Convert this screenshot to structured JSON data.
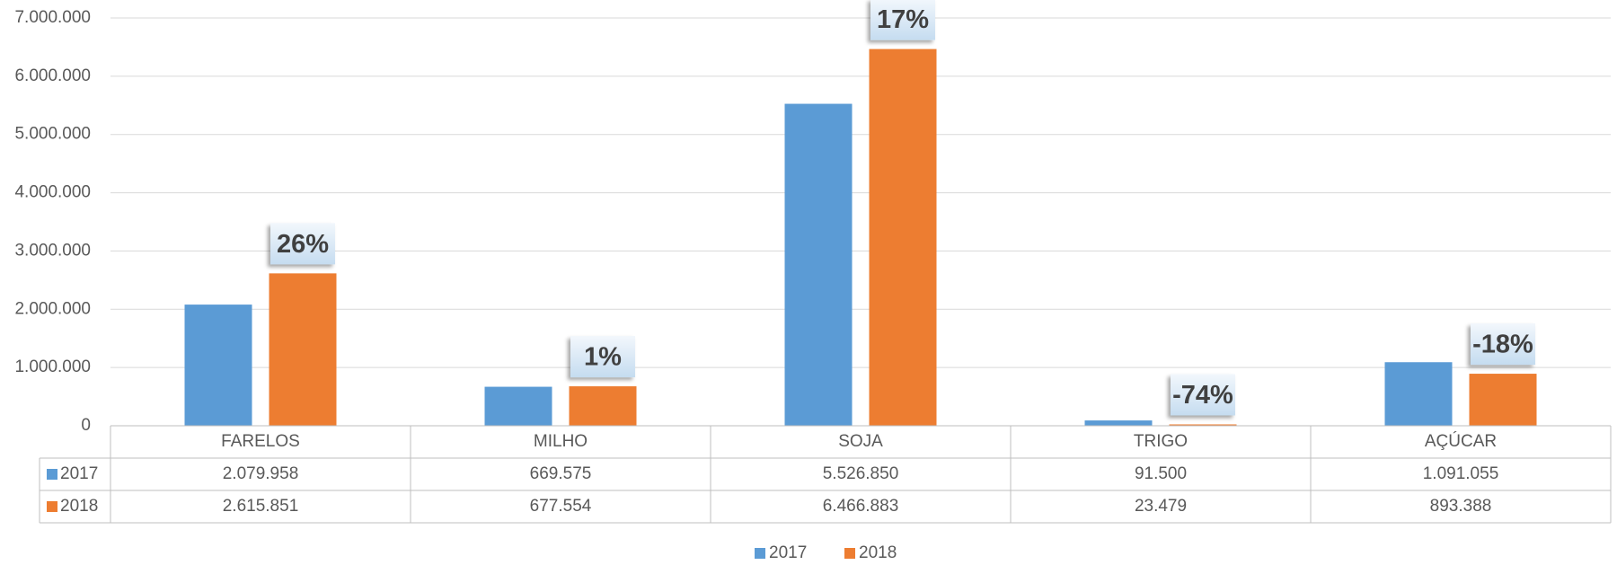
{
  "chart_data": {
    "type": "bar",
    "categories": [
      "FARELOS",
      "MILHO",
      "SOJA",
      "TRIGO",
      "AÇÚCAR"
    ],
    "series": [
      {
        "name": "2017",
        "color": "#5b9bd5",
        "values": [
          2079958,
          669575,
          5526850,
          91500,
          1091055
        ],
        "value_labels": [
          "2.079.958",
          "669.575",
          "5.526.850",
          "91.500",
          "1.091.055"
        ]
      },
      {
        "name": "2018",
        "color": "#ed7d31",
        "values": [
          2615851,
          677554,
          6466883,
          23479,
          893388
        ],
        "value_labels": [
          "2.615.851",
          "677.554",
          "6.466.883",
          "23.479",
          "893.388"
        ]
      }
    ],
    "annotations": [
      "26%",
      "1%",
      "17%",
      "-74%",
      "-18%"
    ],
    "ylim": [
      0,
      7000000
    ],
    "yticks": [
      0,
      {
        "value": 1000000,
        "label": "1.000.000"
      },
      {
        "value": 2000000,
        "label": "2.000.000"
      },
      {
        "value": 3000000,
        "label": "3.000.000"
      },
      {
        "value": 4000000,
        "label": "4.000.000"
      },
      {
        "value": 5000000,
        "label": "5.000.000"
      },
      {
        "value": 6000000,
        "label": "6.000.000"
      },
      {
        "value": 7000000,
        "label": "7.000.000"
      }
    ],
    "grid": true,
    "legend": "bottom",
    "data_table": true
  }
}
